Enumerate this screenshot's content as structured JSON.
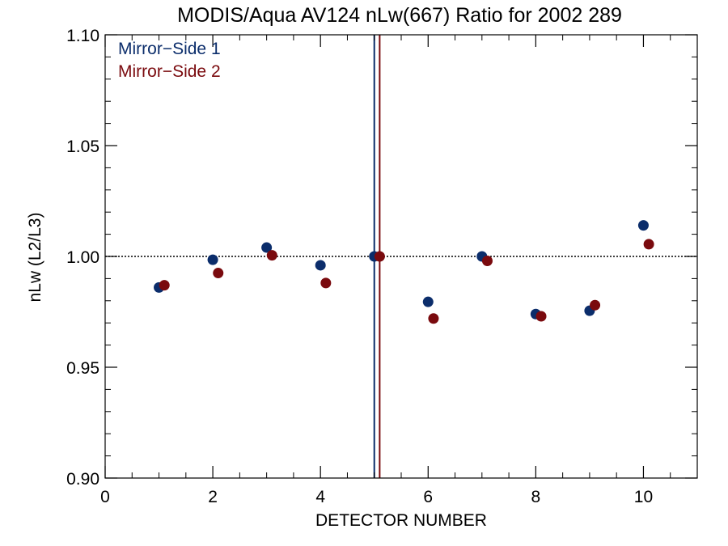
{
  "chart_data": {
    "type": "scatter",
    "title": "MODIS/Aqua AV124 nLw(667) Ratio for 2002 289",
    "xlabel": "DETECTOR NUMBER",
    "ylabel": "nLw (L2/L3)",
    "xlim": [
      0,
      11
    ],
    "ylim": [
      0.9,
      1.1
    ],
    "x_ticks": [
      0,
      2,
      4,
      6,
      8,
      10
    ],
    "x_tick_labels": [
      "0",
      "2",
      "4",
      "6",
      "8",
      "10"
    ],
    "x_minor_step": 0.5,
    "y_ticks": [
      0.9,
      0.95,
      1.0,
      1.05,
      1.1
    ],
    "y_tick_labels": [
      "0.90",
      "0.95",
      "1.00",
      "1.05",
      "1.10"
    ],
    "y_minor_step": 0.01,
    "legend_position": "top-left",
    "reference_line": {
      "y": 1.0,
      "style": "dotted",
      "color": "#000000"
    },
    "series": [
      {
        "name": "Mirror−Side 1",
        "color": "#0b2d6b",
        "x": [
          1,
          2,
          3,
          4,
          5,
          6,
          7,
          8,
          9,
          10
        ],
        "y": [
          0.986,
          0.9985,
          1.004,
          0.996,
          1.0,
          0.9795,
          1.0,
          0.974,
          0.9755,
          1.014
        ],
        "vertical_line_x": 5.0
      },
      {
        "name": "Mirror−Side 2",
        "color": "#7a0a0e",
        "x": [
          1.1,
          2.1,
          3.1,
          4.1,
          5.1,
          6.1,
          7.1,
          8.1,
          9.1,
          10.1
        ],
        "y": [
          0.987,
          0.9925,
          1.0005,
          0.988,
          1.0,
          0.972,
          0.998,
          0.973,
          0.978,
          1.0055
        ],
        "vertical_line_x": 5.1
      }
    ]
  }
}
